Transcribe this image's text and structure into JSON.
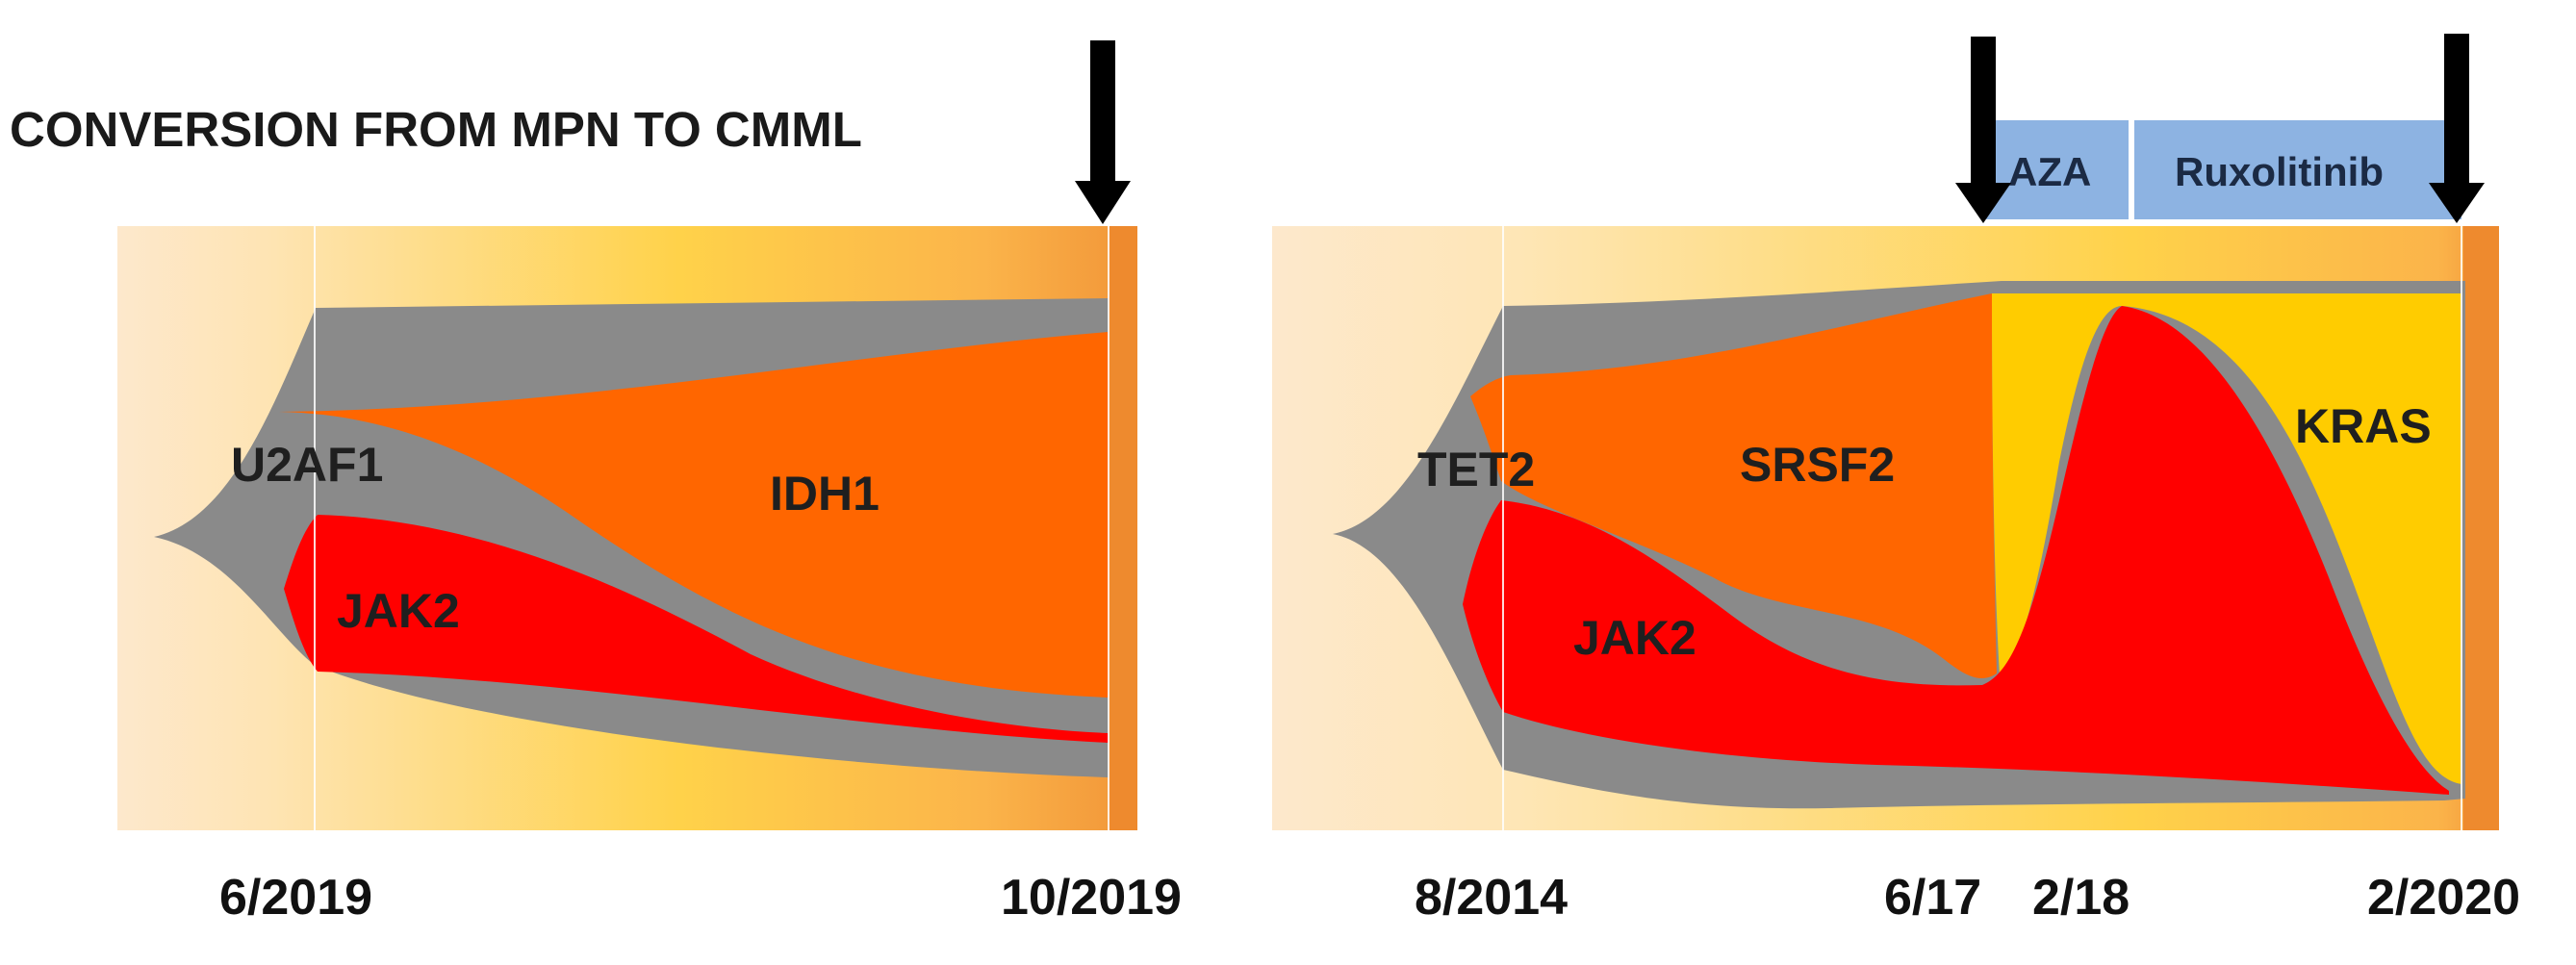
{
  "title": "CONVERSION FROM MPN TO CMML",
  "colors": {
    "gray_clone": "#8a8a8a",
    "jak2": "#ff0000",
    "idh1_srsf2": "#ff6600",
    "kras": "#ffcc00",
    "treatment_box": "#8db3e2",
    "arrow": "#000000"
  },
  "left_panel": {
    "labels": {
      "u2af1": "U2AF1",
      "idh1": "IDH1",
      "jak2": "JAK2"
    },
    "dates": [
      "6/2019",
      "10/2019"
    ]
  },
  "right_panel": {
    "labels": {
      "tet2": "TET2",
      "srsf2": "SRSF2",
      "jak2": "JAK2",
      "kras": "KRAS"
    },
    "dates": [
      "8/2014",
      "6/17",
      "2/18",
      "2/2020"
    ],
    "treatments": [
      "AZA",
      "Ruxolitinib"
    ]
  }
}
